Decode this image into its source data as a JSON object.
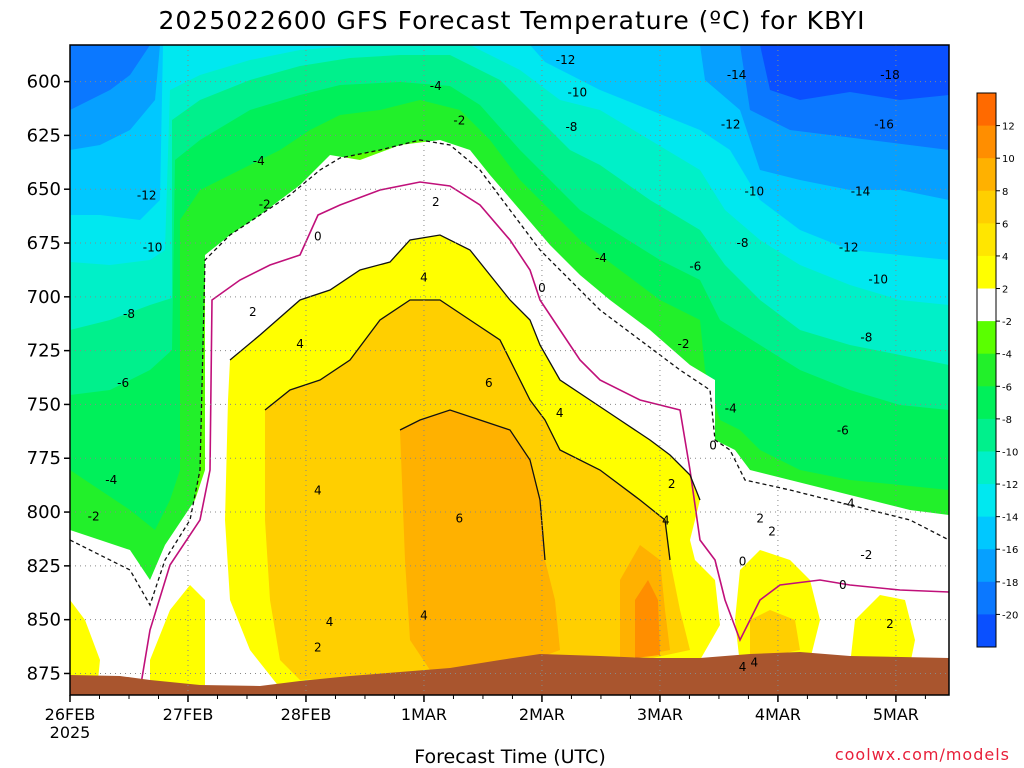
{
  "title": "2025022600 GFS Forecast Temperature (ºC) for KBYI",
  "credit": "coolwx.com/models",
  "chart_data": {
    "type": "heatmap",
    "title": "2025022600 GFS Forecast Temperature (ºC) for KBYI",
    "xlabel": "Forecast Time (UTC)",
    "ylabel": "",
    "x_tick_labels": [
      "26FEB",
      "27FEB",
      "28FEB",
      "1MAR",
      "2MAR",
      "3MAR",
      "4MAR",
      "5MAR"
    ],
    "x_tick_sublabel": "2025",
    "x_range_days": [
      0,
      7.45
    ],
    "y_tick_labels": [
      "600",
      "625",
      "650",
      "675",
      "700",
      "725",
      "750",
      "775",
      "800",
      "825",
      "850",
      "875"
    ],
    "y_range_hpa": [
      583,
      885
    ],
    "y_scale": "linear (pressure, inverted)",
    "grid": true,
    "colorbar": {
      "placement": "right",
      "levels": [
        -22,
        -20,
        -18,
        -16,
        -14,
        -12,
        -10,
        -8,
        -6,
        -4,
        -2,
        2,
        4,
        6,
        8,
        10,
        12,
        14
      ],
      "tick_labels": [
        "-20",
        "-18",
        "-16",
        "-14",
        "-12",
        "-10",
        "-8",
        "-6",
        "-4",
        "-2",
        "2",
        "4",
        "6",
        "8",
        "10",
        "12"
      ],
      "colors": [
        "#0a50ff",
        "#0b78ff",
        "#06a0ff",
        "#00c8ff",
        "#00e8f0",
        "#00f0c8",
        "#00f08c",
        "#00f05a",
        "#22f02a",
        "#5aff00",
        "#ffffff",
        "#ffff00",
        "#ffe600",
        "#ffcf00",
        "#ffb100",
        "#ff8e00",
        "#ff6a00"
      ]
    },
    "temperature_profiles": [
      {
        "day": 0.0,
        "T_hPa600": -16,
        "T_hPa700": -9,
        "T_hPa800": -3,
        "T_hPa850": 1
      },
      {
        "day": 0.5,
        "T_hPa600": -15,
        "T_hPa700": -8,
        "T_hPa800": -3,
        "T_hPa850": -1
      },
      {
        "day": 1.0,
        "T_hPa600": -13,
        "T_hPa700": -8,
        "T_hPa800": -4,
        "T_hPa850": 3
      },
      {
        "day": 1.5,
        "T_hPa600": -7,
        "T_hPa700": 1,
        "T_hPa800": 3,
        "T_hPa850": 3
      },
      {
        "day": 2.0,
        "T_hPa600": -6,
        "T_hPa700": 2,
        "T_hPa800": 4,
        "T_hPa850": 4
      },
      {
        "day": 2.5,
        "T_hPa600": -4,
        "T_hPa700": 3,
        "T_hPa800": 5,
        "T_hPa850": 4
      },
      {
        "day": 3.0,
        "T_hPa600": -4,
        "T_hPa700": 4,
        "T_hPa800": 6,
        "T_hPa850": 4
      },
      {
        "day": 3.5,
        "T_hPa600": -5,
        "T_hPa700": 3,
        "T_hPa800": 5,
        "T_hPa850": 5
      },
      {
        "day": 4.0,
        "T_hPa600": -9,
        "T_hPa700": -2,
        "T_hPa800": 3,
        "T_hPa850": 5
      },
      {
        "day": 4.5,
        "T_hPa600": -11,
        "T_hPa700": -4,
        "T_hPa800": 2,
        "T_hPa850": 5
      },
      {
        "day": 5.0,
        "T_hPa600": -13,
        "T_hPa700": -6,
        "T_hPa800": 1,
        "T_hPa850": 7
      },
      {
        "day": 5.5,
        "T_hPa600": -14,
        "T_hPa700": -9,
        "T_hPa800": -2,
        "T_hPa850": 0
      },
      {
        "day": 6.0,
        "T_hPa600": -16,
        "T_hPa700": -10,
        "T_hPa800": -1,
        "T_hPa850": 4
      },
      {
        "day": 6.5,
        "T_hPa600": -17,
        "T_hPa700": -11,
        "T_hPa800": -4,
        "T_hPa850": 1
      },
      {
        "day": 7.0,
        "T_hPa600": -18,
        "T_hPa700": -10,
        "T_hPa800": -3,
        "T_hPa850": 2
      },
      {
        "day": 7.45,
        "T_hPa600": -18,
        "T_hPa700": -10,
        "T_hPa800": -2,
        "T_hPa850": 2
      }
    ],
    "contour_labels": [
      {
        "text": "-12",
        "day": 4.2,
        "hPa": 590
      },
      {
        "text": "-10",
        "day": 4.3,
        "hPa": 605
      },
      {
        "text": "-8",
        "day": 4.25,
        "hPa": 621
      },
      {
        "text": "-4",
        "day": 3.1,
        "hPa": 602
      },
      {
        "text": "-2",
        "day": 3.3,
        "hPa": 618
      },
      {
        "text": "-14",
        "day": 5.65,
        "hPa": 597
      },
      {
        "text": "-12",
        "day": 5.6,
        "hPa": 620
      },
      {
        "text": "-10",
        "day": 5.8,
        "hPa": 651
      },
      {
        "text": "-18",
        "day": 6.95,
        "hPa": 597
      },
      {
        "text": "-16",
        "day": 6.9,
        "hPa": 620
      },
      {
        "text": "-14",
        "day": 6.7,
        "hPa": 651
      },
      {
        "text": "-12",
        "day": 6.6,
        "hPa": 677
      },
      {
        "text": "-10",
        "day": 6.85,
        "hPa": 692
      },
      {
        "text": "-8",
        "day": 6.75,
        "hPa": 719
      },
      {
        "text": "-6",
        "day": 6.55,
        "hPa": 762
      },
      {
        "text": "-4",
        "day": 6.6,
        "hPa": 796
      },
      {
        "text": "-2",
        "day": 6.75,
        "hPa": 820
      },
      {
        "text": "0",
        "day": 6.55,
        "hPa": 834
      },
      {
        "text": "2",
        "day": 6.95,
        "hPa": 852
      },
      {
        "text": "-12",
        "day": 0.65,
        "hPa": 653
      },
      {
        "text": "-10",
        "day": 0.7,
        "hPa": 677
      },
      {
        "text": "-8",
        "day": 0.5,
        "hPa": 708
      },
      {
        "text": "-6",
        "day": 0.45,
        "hPa": 740
      },
      {
        "text": "-4",
        "day": 0.35,
        "hPa": 785
      },
      {
        "text": "-2",
        "day": 0.2,
        "hPa": 802
      },
      {
        "text": "-4",
        "day": 1.6,
        "hPa": 637
      },
      {
        "text": "-2",
        "day": 1.65,
        "hPa": 657
      },
      {
        "text": "0",
        "day": 2.1,
        "hPa": 672
      },
      {
        "text": "2",
        "day": 1.55,
        "hPa": 707
      },
      {
        "text": "4",
        "day": 1.95,
        "hPa": 722
      },
      {
        "text": "4",
        "day": 2.1,
        "hPa": 790
      },
      {
        "text": "4",
        "day": 2.2,
        "hPa": 851
      },
      {
        "text": "2",
        "day": 2.1,
        "hPa": 863
      },
      {
        "text": "2",
        "day": 3.1,
        "hPa": 656
      },
      {
        "text": "4",
        "day": 3.0,
        "hPa": 691
      },
      {
        "text": "6",
        "day": 3.55,
        "hPa": 740
      },
      {
        "text": "6",
        "day": 3.3,
        "hPa": 803
      },
      {
        "text": "4",
        "day": 3.0,
        "hPa": 848
      },
      {
        "text": "0",
        "day": 4.0,
        "hPa": 696
      },
      {
        "text": "4",
        "day": 4.15,
        "hPa": 754
      },
      {
        "text": "2",
        "day": 5.1,
        "hPa": 787
      },
      {
        "text": "4",
        "day": 5.05,
        "hPa": 804
      },
      {
        "text": "-2",
        "day": 5.2,
        "hPa": 722
      },
      {
        "text": "-4",
        "day": 4.5,
        "hPa": 682
      },
      {
        "text": "-6",
        "day": 5.3,
        "hPa": 686
      },
      {
        "text": "-8",
        "day": 5.7,
        "hPa": 675
      },
      {
        "text": "-4",
        "day": 5.6,
        "hPa": 752
      },
      {
        "text": "0",
        "day": 5.45,
        "hPa": 769
      },
      {
        "text": "0",
        "day": 5.7,
        "hPa": 823
      },
      {
        "text": "2",
        "day": 5.85,
        "hPa": 803
      },
      {
        "text": "2",
        "day": 5.95,
        "hPa": 809
      },
      {
        "text": "4",
        "day": 5.7,
        "hPa": 872
      },
      {
        "text": "4",
        "day": 5.8,
        "hPa": 870
      }
    ]
  }
}
